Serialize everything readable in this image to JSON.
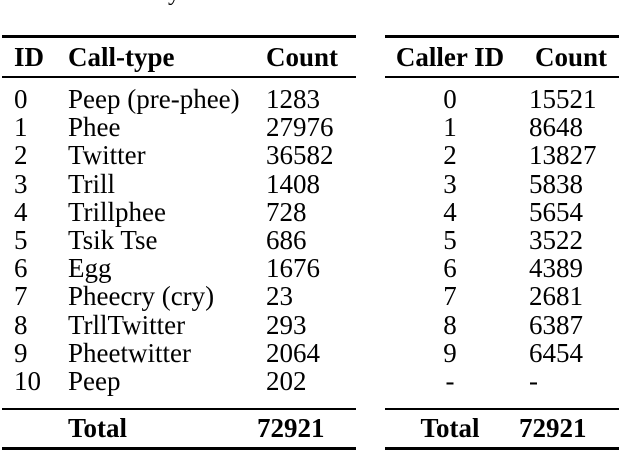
{
  "caption_fragment": "y",
  "colors": {
    "background": "#ffffff",
    "text": "#000000",
    "rule": "#000000"
  },
  "left_table": {
    "headers": {
      "id": "ID",
      "call_type": "Call-type",
      "count": "Count"
    },
    "rows": [
      [
        "0",
        "Peep (pre-phee)",
        "1283"
      ],
      [
        "1",
        "Phee",
        "27976"
      ],
      [
        "2",
        "Twitter",
        "36582"
      ],
      [
        "3",
        "Trill",
        "1408"
      ],
      [
        "4",
        "Trillphee",
        "728"
      ],
      [
        "5",
        "Tsik Tse",
        "686"
      ],
      [
        "6",
        "Egg",
        "1676"
      ],
      [
        "7",
        "Pheecry (cry)",
        "23"
      ],
      [
        "8",
        "TrllTwitter",
        "293"
      ],
      [
        "9",
        "Pheetwitter",
        "2064"
      ],
      [
        "10",
        "Peep",
        "202"
      ]
    ],
    "total_label": "Total",
    "total_value": "72921"
  },
  "right_table": {
    "headers": {
      "caller_id": "Caller ID",
      "count": "Count"
    },
    "rows": [
      [
        "0",
        "15521"
      ],
      [
        "1",
        "8648"
      ],
      [
        "2",
        "13827"
      ],
      [
        "3",
        "5838"
      ],
      [
        "4",
        "5654"
      ],
      [
        "5",
        "3522"
      ],
      [
        "6",
        "4389"
      ],
      [
        "7",
        "2681"
      ],
      [
        "8",
        "6387"
      ],
      [
        "9",
        "6454"
      ],
      [
        "-",
        "-"
      ]
    ],
    "total_label": "Total",
    "total_value": "72921"
  }
}
